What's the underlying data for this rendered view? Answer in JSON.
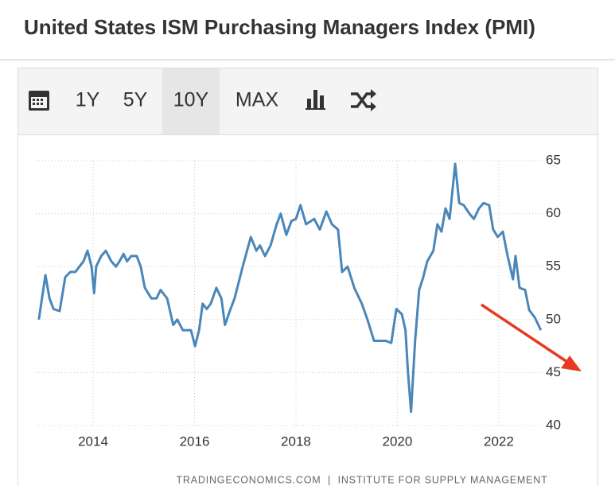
{
  "header": {
    "title": "United States ISM Purchasing Managers Index (PMI)"
  },
  "toolbar": {
    "buttons": [
      "1Y",
      "5Y",
      "10Y",
      "MAX"
    ],
    "active_button": 2
  },
  "chart_data": {
    "type": "line",
    "source": "TRADINGECONOMICS.COM  |  INSTITUTE FOR SUPPLY MANAGEMENT",
    "xlim": [
      2012.87,
      2022.88
    ],
    "xticks": [
      2014,
      2016,
      2018,
      2020,
      2022
    ],
    "ylim": [
      40,
      65
    ],
    "yticks": [
      40,
      45,
      50,
      55,
      60,
      65
    ],
    "grid": true,
    "series": [
      {
        "color": "#4a86ba",
        "x": [
          2012.93,
          2013.06,
          2013.14,
          2013.22,
          2013.34,
          2013.45,
          2013.55,
          2013.65,
          2013.73,
          2013.81,
          2013.89,
          2013.97,
          2014.02,
          2014.06,
          2014.16,
          2014.25,
          2014.36,
          2014.45,
          2014.52,
          2014.6,
          2014.67,
          2014.75,
          2014.86,
          2014.94,
          2015.02,
          2015.15,
          2015.25,
          2015.33,
          2015.46,
          2015.58,
          2015.66,
          2015.77,
          2015.93,
          2016.01,
          2016.09,
          2016.16,
          2016.24,
          2016.32,
          2016.43,
          2016.53,
          2016.6,
          2016.71,
          2016.79,
          2016.95,
          2017.11,
          2017.22,
          2017.29,
          2017.39,
          2017.5,
          2017.62,
          2017.7,
          2017.81,
          2017.91,
          2018.0,
          2018.09,
          2018.2,
          2018.36,
          2018.47,
          2018.6,
          2018.71,
          2018.83,
          2018.91,
          2019.02,
          2019.15,
          2019.3,
          2019.41,
          2019.54,
          2019.66,
          2019.77,
          2019.88,
          2019.98,
          2020.09,
          2020.16,
          2020.21,
          2020.27,
          2020.35,
          2020.43,
          2020.51,
          2020.59,
          2020.71,
          2020.79,
          2020.87,
          2020.95,
          2021.03,
          2021.14,
          2021.22,
          2021.31,
          2021.42,
          2021.51,
          2021.61,
          2021.7,
          2021.81,
          2021.89,
          2021.98,
          2022.08,
          2022.17,
          2022.28,
          2022.33,
          2022.41,
          2022.52,
          2022.6,
          2022.71,
          2022.83
        ],
        "values": [
          50,
          54.2,
          52,
          51,
          50.8,
          54,
          54.5,
          54.5,
          55,
          55.5,
          56.5,
          55,
          52.5,
          55,
          56,
          56.5,
          55.5,
          55,
          55.5,
          56.2,
          55.5,
          56,
          56,
          55,
          53,
          52,
          52,
          52.8,
          52,
          49.5,
          50,
          49,
          49,
          47.5,
          49,
          51.5,
          51,
          51.5,
          53,
          52,
          49.5,
          51,
          52,
          55,
          57.8,
          56.5,
          57,
          56,
          57,
          59,
          60,
          58,
          59.3,
          59.5,
          60.8,
          59,
          59.5,
          58.5,
          60.2,
          59,
          58.5,
          54.5,
          55,
          53,
          51.5,
          50,
          48,
          48,
          48,
          47.8,
          51,
          50.5,
          49,
          45,
          41.3,
          48,
          52.8,
          54,
          55.5,
          56.5,
          59,
          58.3,
          60.5,
          59.5,
          64.7,
          61,
          60.8,
          60,
          59.5,
          60.5,
          61,
          60.8,
          58.5,
          57.8,
          58.3,
          56.1,
          53.8,
          56,
          53,
          52.8,
          50.9,
          50.2,
          49
        ]
      }
    ]
  }
}
